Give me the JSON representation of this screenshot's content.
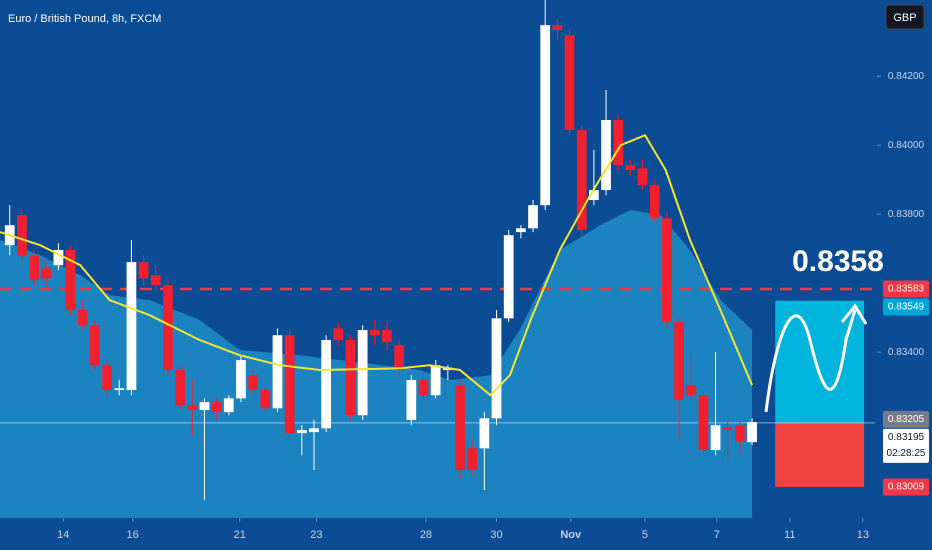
{
  "chart_data": {
    "type": "candlestick",
    "title": "Euro / British Pound, 8h, FXCM",
    "currency": "GBP",
    "annotation": "0.8358",
    "countdown": "02:28:25",
    "up_color": "#ffffff",
    "down_color": "#f0202f",
    "open": [
      0.8371,
      0.83797,
      0.83681,
      0.83643,
      0.83652,
      0.83696,
      0.83522,
      0.83478,
      0.83362,
      0.8329,
      0.8329,
      0.83661,
      0.83623,
      0.83594,
      0.83348,
      0.83246,
      0.83232,
      0.83255,
      0.83226,
      0.83266,
      0.83333,
      0.8329,
      0.83237,
      0.83449,
      0.83165,
      0.83168,
      0.83179,
      0.83469,
      0.83435,
      0.83217,
      0.83464,
      0.83464,
      0.8342,
      0.83203,
      0.83319,
      0.83275,
      0.83348,
      0.83304,
      0.83121,
      0.83121,
      0.83208,
      0.83498,
      0.83748,
      0.83759,
      0.83826,
      0.84348,
      0.84319,
      0.84044,
      0.83841,
      0.8387,
      0.84073,
      0.83942,
      0.83933,
      0.83884,
      0.83788,
      0.83487,
      0.83304,
      0.83275,
      0.83116,
      0.83182,
      0.83188,
      0.83139
    ],
    "high": [
      0.83826,
      0.83812,
      0.83696,
      0.83661,
      0.83716,
      0.8371,
      0.83551,
      0.83493,
      0.83377,
      0.83319,
      0.83725,
      0.83681,
      0.83652,
      0.83609,
      0.83362,
      0.83319,
      0.83266,
      0.83266,
      0.83275,
      0.83391,
      0.83348,
      0.83304,
      0.83469,
      0.83464,
      0.83188,
      0.83203,
      0.83449,
      0.83487,
      0.83449,
      0.83478,
      0.83493,
      0.83487,
      0.83435,
      0.83333,
      0.83342,
      0.83377,
      0.83362,
      0.83319,
      0.83145,
      0.83226,
      0.83522,
      0.83754,
      0.83768,
      0.83841,
      0.84421,
      0.84368,
      0.84334,
      0.84058,
      0.83986,
      0.8416,
      0.84087,
      0.83957,
      0.83957,
      0.83899,
      0.83806,
      0.83498,
      0.83391,
      0.8329,
      0.834,
      0.83203,
      0.83197,
      0.83208
    ],
    "low": [
      0.83681,
      0.83667,
      0.83594,
      0.83594,
      0.83638,
      0.83507,
      0.83464,
      0.83348,
      0.83275,
      0.83275,
      0.83275,
      0.83594,
      0.8358,
      0.83333,
      0.83232,
      0.83159,
      0.82971,
      0.83203,
      0.83217,
      0.83255,
      0.83275,
      0.83226,
      0.83226,
      0.83145,
      0.83101,
      0.83058,
      0.83168,
      0.8342,
      0.83203,
      0.83203,
      0.8342,
      0.83406,
      0.83333,
      0.83188,
      0.83261,
      0.83266,
      0.83319,
      0.83029,
      0.83043,
      0.83,
      0.83188,
      0.83487,
      0.8373,
      0.83748,
      0.83812,
      0.84305,
      0.84029,
      0.83739,
      0.83826,
      0.83855,
      0.83928,
      0.83913,
      0.8387,
      0.83777,
      0.83469,
      0.83145,
      0.83261,
      0.83101,
      0.83101,
      0.83087,
      0.83101,
      0.8313
    ],
    "close": [
      0.83768,
      0.83681,
      0.83609,
      0.83614,
      0.83696,
      0.83522,
      0.83478,
      0.83362,
      0.8329,
      0.83295,
      0.83661,
      0.83614,
      0.83594,
      0.83348,
      0.83246,
      0.83232,
      0.83255,
      0.83226,
      0.83266,
      0.83377,
      0.8329,
      0.83237,
      0.83449,
      0.83165,
      0.83174,
      0.83179,
      0.83435,
      0.83435,
      0.83217,
      0.83464,
      0.83449,
      0.83429,
      0.83348,
      0.83319,
      0.83275,
      0.83362,
      0.83353,
      0.83058,
      0.83058,
      0.83208,
      0.83498,
      0.83739,
      0.83759,
      0.83826,
      0.84348,
      0.84334,
      0.84044,
      0.83754,
      0.8387,
      0.84073,
      0.83942,
      0.83928,
      0.83884,
      0.83788,
      0.83487,
      0.83261,
      0.83275,
      0.83116,
      0.83188,
      0.83174,
      0.83139,
      0.83197
    ],
    "ma": {
      "color": "#f5e52f",
      "x": [
        -0.8,
        2.5,
        5.8,
        8.2,
        11.5,
        15.6,
        18.9,
        22.2,
        25.5,
        32.1,
        34.5,
        37.0,
        39.5,
        41.1,
        42.8,
        45.2,
        47.7,
        50.2,
        52.2,
        53.9,
        55.9,
        58.4,
        61.0
      ],
      "values": [
        0.83748,
        0.8371,
        0.83652,
        0.83551,
        0.83507,
        0.83435,
        0.83391,
        0.83362,
        0.83348,
        0.83353,
        0.83362,
        0.83348,
        0.83275,
        0.83333,
        0.83493,
        0.83696,
        0.83855,
        0.84,
        0.84029,
        0.83928,
        0.83725,
        0.83522,
        0.83304
      ]
    },
    "area": {
      "color": "#1e8ec8",
      "x": [
        -0.8,
        2.5,
        5.8,
        8.2,
        11.5,
        15.6,
        18.9,
        23.8,
        27.1,
        33.7,
        36.2,
        39.5,
        41.9,
        45.2,
        48.5,
        51.0,
        53.5,
        55.9,
        58.4,
        61.0
      ],
      "values": [
        0.83725,
        0.83681,
        0.83623,
        0.83565,
        0.83551,
        0.83493,
        0.83406,
        0.83391,
        0.83377,
        0.83348,
        0.83319,
        0.83333,
        0.83464,
        0.83696,
        0.83768,
        0.83812,
        0.83797,
        0.83696,
        0.83551,
        0.83464
      ]
    },
    "levels": [
      {
        "value": 0.83583,
        "color": "#f23645",
        "text_color": "#ffffff",
        "dashed": true
      },
      {
        "value": 0.83549,
        "color": "#00a6d6",
        "text_color": "#ffffff"
      },
      {
        "value": 0.83205,
        "color": "#787b86",
        "text_color": "#ffffff"
      },
      {
        "value": 0.83195,
        "color": "#ffffff",
        "text_color": "#131722",
        "line": true
      },
      {
        "value": 0.83009,
        "color": "#f23645",
        "text_color": "#ffffff"
      }
    ],
    "zones": [
      {
        "x": [
          62.9,
          70.2
        ],
        "top": 0.83549,
        "bottom": 0.83195,
        "color": "#00b4db"
      },
      {
        "x": [
          62.9,
          70.2
        ],
        "top": 0.83195,
        "bottom": 0.83009,
        "color": "#f0423f"
      }
    ],
    "xlim": [
      -0.8,
      71.1
    ],
    "xticks": [
      {
        "value": 4.4,
        "label": "14"
      },
      {
        "value": 10.1,
        "label": "16"
      },
      {
        "value": 18.9,
        "label": "21"
      },
      {
        "value": 25.2,
        "label": "23"
      },
      {
        "value": 34.2,
        "label": "28"
      },
      {
        "value": 40.0,
        "label": "30"
      },
      {
        "value": 46.1,
        "label": "Nov"
      },
      {
        "value": 52.2,
        "label": "5"
      },
      {
        "value": 58.1,
        "label": "7"
      },
      {
        "value": 64.1,
        "label": "11"
      },
      {
        "value": 70.1,
        "label": "13"
      }
    ],
    "ylim": [
      0.82919,
      0.84421
    ],
    "yticks": [
      {
        "value": 0.842,
        "label": "0.84200"
      },
      {
        "value": 0.84,
        "label": "0.84000"
      },
      {
        "value": 0.838,
        "label": "0.83800"
      },
      {
        "value": 0.834,
        "label": "0.83400"
      }
    ]
  }
}
